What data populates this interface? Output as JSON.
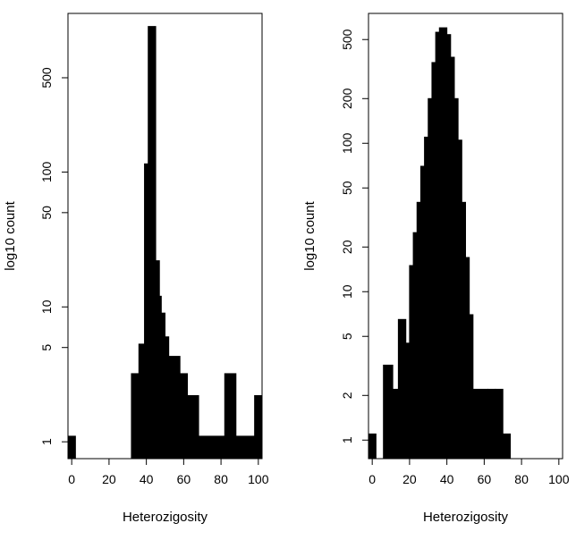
{
  "chart_data": [
    {
      "type": "bar",
      "xlabel": "Heterozigosity",
      "ylabel": "log10 count",
      "y_scale": "log",
      "xlim": [
        -2,
        102
      ],
      "ylim": [
        0.75,
        1500
      ],
      "x_ticks": [
        0,
        20,
        40,
        60,
        80,
        100
      ],
      "y_ticks": [
        1,
        5,
        10,
        50,
        100,
        500
      ],
      "bars": [
        {
          "x0": -2,
          "x1": 2,
          "count": 1.1
        },
        {
          "x0": 32,
          "x1": 36,
          "count": 3.2
        },
        {
          "x0": 36,
          "x1": 39,
          "count": 5.3
        },
        {
          "x0": 39,
          "x1": 41,
          "count": 115
        },
        {
          "x0": 41,
          "x1": 45,
          "count": 1200
        },
        {
          "x0": 45,
          "x1": 47,
          "count": 22
        },
        {
          "x0": 47,
          "x1": 48,
          "count": 12
        },
        {
          "x0": 48,
          "x1": 50,
          "count": 9
        },
        {
          "x0": 50,
          "x1": 52,
          "count": 6
        },
        {
          "x0": 52,
          "x1": 58,
          "count": 4.3
        },
        {
          "x0": 58,
          "x1": 62,
          "count": 3.2
        },
        {
          "x0": 62,
          "x1": 68,
          "count": 2.2
        },
        {
          "x0": 68,
          "x1": 82,
          "count": 1.1
        },
        {
          "x0": 82,
          "x1": 88,
          "count": 3.2
        },
        {
          "x0": 88,
          "x1": 98,
          "count": 1.1
        },
        {
          "x0": 98,
          "x1": 102,
          "count": 2.2
        }
      ]
    },
    {
      "type": "bar",
      "xlabel": "Heterozigosity",
      "ylabel": "log10 count",
      "y_scale": "log",
      "xlim": [
        -2,
        102
      ],
      "ylim": [
        0.75,
        750
      ],
      "x_ticks": [
        0,
        20,
        40,
        60,
        80,
        100
      ],
      "y_ticks": [
        1,
        2,
        5,
        10,
        20,
        50,
        100,
        200,
        500
      ],
      "bars": [
        {
          "x0": -2,
          "x1": 2,
          "count": 1.1
        },
        {
          "x0": 6,
          "x1": 11,
          "count": 3.2
        },
        {
          "x0": 11,
          "x1": 14,
          "count": 2.2
        },
        {
          "x0": 14,
          "x1": 18,
          "count": 6.5
        },
        {
          "x0": 18,
          "x1": 20,
          "count": 4.5
        },
        {
          "x0": 20,
          "x1": 22,
          "count": 15
        },
        {
          "x0": 22,
          "x1": 24,
          "count": 25
        },
        {
          "x0": 24,
          "x1": 26,
          "count": 40
        },
        {
          "x0": 26,
          "x1": 28,
          "count": 70
        },
        {
          "x0": 28,
          "x1": 30,
          "count": 110
        },
        {
          "x0": 30,
          "x1": 32,
          "count": 200
        },
        {
          "x0": 32,
          "x1": 34,
          "count": 350
        },
        {
          "x0": 34,
          "x1": 36,
          "count": 560
        },
        {
          "x0": 36,
          "x1": 40,
          "count": 600
        },
        {
          "x0": 40,
          "x1": 42,
          "count": 540
        },
        {
          "x0": 42,
          "x1": 44,
          "count": 380
        },
        {
          "x0": 44,
          "x1": 46,
          "count": 200
        },
        {
          "x0": 46,
          "x1": 48,
          "count": 105
        },
        {
          "x0": 48,
          "x1": 50,
          "count": 40
        },
        {
          "x0": 50,
          "x1": 52,
          "count": 17
        },
        {
          "x0": 52,
          "x1": 54,
          "count": 7
        },
        {
          "x0": 54,
          "x1": 62,
          "count": 2.2
        },
        {
          "x0": 62,
          "x1": 66,
          "count": 2.2
        },
        {
          "x0": 66,
          "x1": 70,
          "count": 2.2
        },
        {
          "x0": 70,
          "x1": 74,
          "count": 1.1
        }
      ]
    }
  ]
}
